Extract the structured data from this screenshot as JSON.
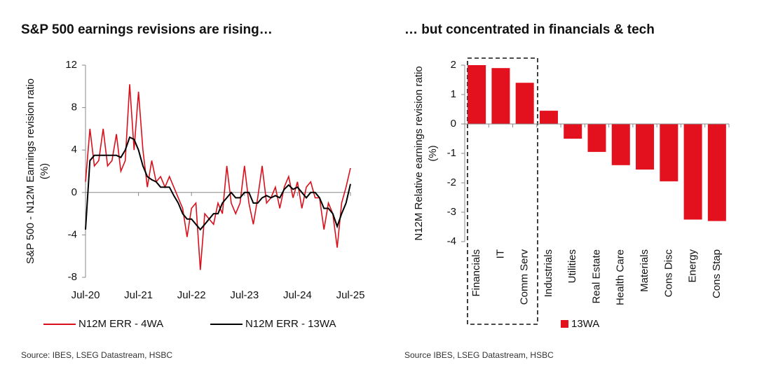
{
  "chart_data": [
    {
      "type": "line",
      "title": "S&P 500 earnings revisions are rising…",
      "ylabel": [
        "S&P 500 - N12M Earnings revision ratio",
        "(%)"
      ],
      "source": "Source: IBES, LSEG Datastream, HSBC",
      "x": [
        "2020-07",
        "2020-08",
        "2020-09",
        "2020-10",
        "2020-11",
        "2020-12",
        "2021-01",
        "2021-02",
        "2021-03",
        "2021-04",
        "2021-05",
        "2021-06",
        "2021-07",
        "2021-08",
        "2021-09",
        "2021-10",
        "2021-11",
        "2021-12",
        "2022-01",
        "2022-02",
        "2022-03",
        "2022-04",
        "2022-05",
        "2022-06",
        "2022-07",
        "2022-08",
        "2022-09",
        "2022-10",
        "2022-11",
        "2022-12",
        "2023-01",
        "2023-02",
        "2023-03",
        "2023-04",
        "2023-05",
        "2023-06",
        "2023-07",
        "2023-08",
        "2023-09",
        "2023-10",
        "2023-11",
        "2023-12",
        "2024-01",
        "2024-02",
        "2024-03",
        "2024-04",
        "2024-05",
        "2024-06",
        "2024-07",
        "2024-08",
        "2024-09",
        "2024-10",
        "2024-11",
        "2024-12",
        "2025-01",
        "2025-02",
        "2025-03",
        "2025-04",
        "2025-05",
        "2025-06",
        "2025-07"
      ],
      "xlim": [
        "2020-07",
        "2025-07"
      ],
      "xticks": [
        {
          "value": "2020-07",
          "label": "Jul-20"
        },
        {
          "value": "2021-07",
          "label": "Jul-21"
        },
        {
          "value": "2022-07",
          "label": "Jul-22"
        },
        {
          "value": "2023-07",
          "label": "Jul-23"
        },
        {
          "value": "2024-07",
          "label": "Jul-24"
        },
        {
          "value": "2025-07",
          "label": "Jul-25"
        }
      ],
      "ylim": [
        -8,
        12
      ],
      "yticks": [
        -8,
        -4,
        0,
        4,
        8,
        12
      ],
      "series": [
        {
          "name": "N12M ERR - 4WA",
          "color": "#d9101c",
          "values": [
            1,
            6,
            2.5,
            3,
            6,
            2.5,
            3,
            5.5,
            2,
            3,
            10.2,
            4,
            9.5,
            4,
            0.5,
            3,
            1,
            1.5,
            0.5,
            1.5,
            0.5,
            -0.5,
            -1.5,
            -4.2,
            -1.5,
            -1,
            -7.3,
            -2,
            -2.5,
            -3,
            -1,
            -2,
            2.5,
            -1,
            -2,
            -1,
            2.5,
            -1,
            -3,
            -0.5,
            2.5,
            -1,
            -0.5,
            0.5,
            -1.5,
            0.5,
            1.5,
            -0.5,
            1,
            -1.5,
            0.5,
            1,
            -0.5,
            -0.5,
            -3.5,
            -1,
            -2,
            -5.2,
            -1,
            0.5,
            2.3
          ]
        },
        {
          "name": "N12M ERR - 13WA",
          "color": "#000000",
          "values": [
            -3.5,
            3,
            3.5,
            3.5,
            3.5,
            3.5,
            3.5,
            3.5,
            3.3,
            4,
            5.2,
            5,
            4,
            2.5,
            1.5,
            1.2,
            1,
            0.5,
            0.5,
            0.5,
            -0.3,
            -1,
            -2,
            -2.5,
            -2.5,
            -3,
            -3.5,
            -3,
            -2.5,
            -2,
            -2,
            -1,
            -0.5,
            0,
            -0.5,
            -0.5,
            0,
            0,
            -1,
            -1,
            -0.5,
            -0.3,
            -0.5,
            -0.3,
            -0.5,
            0.3,
            0.7,
            0.3,
            0.5,
            0,
            -0.5,
            0,
            0,
            -0.5,
            -1.5,
            -1.5,
            -2,
            -3.2,
            -2,
            -1,
            0.8
          ]
        }
      ]
    },
    {
      "type": "bar",
      "title": "… but concentrated in financials & tech",
      "ylabel": [
        "N12M Relative earnings revision ratio",
        "(%)"
      ],
      "source": "Source IBES, LSEG Datastream, HSBC",
      "categories": [
        "Financials",
        "IT",
        "Comm Serv",
        "Industrials",
        "Utilities",
        "Real Estate",
        "Health Care",
        "Materials",
        "Cons Disc",
        "Energy",
        "Cons Stap"
      ],
      "ylim": [
        -4,
        2
      ],
      "yticks": [
        -4,
        -3,
        -2,
        -1,
        0,
        1,
        2
      ],
      "series": [
        {
          "name": "13WA",
          "color": "#e3101e",
          "values": [
            2.0,
            1.9,
            1.4,
            0.45,
            -0.5,
            -0.95,
            -1.4,
            -1.55,
            -1.95,
            -3.25,
            -3.3
          ]
        }
      ]
    }
  ]
}
